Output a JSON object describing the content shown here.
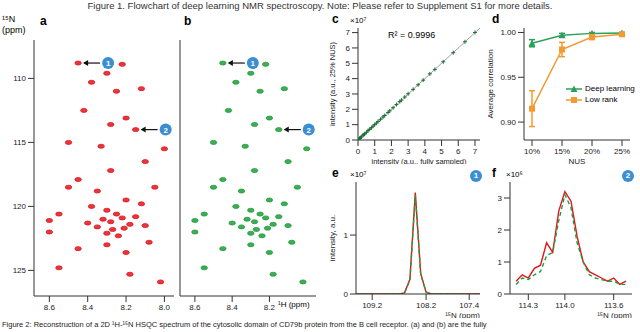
{
  "header": "Figure 1. Flowchart of deep learning NMR spectroscopy. Note: Please refer to Supplement S1 for more details.",
  "caption": "Figure 2: Reconstruction of a 2D ¹H-¹⁵N HSQC spectrum of the cytosolic domain of CD79b protein from the B cell receptor. (a) and (b) are the fully",
  "chart_data": [
    {
      "panel": "a",
      "type": "scatter",
      "y_label": "¹⁵N",
      "y_unit": "(ppm)",
      "color": "#e3141c",
      "x": [
        8.45,
        8.22,
        8.3,
        8.12,
        8.25,
        8.38,
        8.42,
        8.2,
        8.28,
        8.15,
        8.5,
        8.33,
        8.1,
        8.28,
        8.45,
        8.05,
        8.35,
        8.2,
        8.38,
        8.3,
        8.25,
        8.22,
        8.28,
        8.32,
        8.18,
        8.35,
        8.27,
        8.3,
        8.24,
        8.21,
        8.15,
        8.1,
        8.4,
        8.55,
        8.6,
        8.08,
        8.45,
        8.3,
        8.2,
        8.55,
        8.18,
        8.02,
        8.6,
        8.5,
        8.0,
        8.12
      ],
      "values": [
        108.8,
        108.9,
        109.6,
        110.8,
        111.0,
        110.3,
        112.5,
        113.1,
        113.6,
        114.0,
        115.0,
        115.3,
        116.5,
        117.2,
        117.9,
        118.5,
        118.8,
        119.5,
        120.0,
        120.3,
        120.6,
        120.9,
        121.2,
        121.0,
        121.4,
        121.6,
        121.8,
        122.1,
        122.3,
        121.7,
        120.8,
        121.5,
        121.3,
        120.6,
        121.1,
        122.8,
        123.3,
        123.0,
        123.6,
        124.8,
        125.3,
        125.9,
        122.0,
        118.5,
        115.5,
        119.8
      ],
      "xlim": [
        7.95,
        8.68
      ],
      "xticks": [
        8.6,
        8.4,
        8.2,
        {
          "value": 8,
          "label": "8.0"
        }
      ],
      "ylim": [
        107,
        127
      ],
      "yticks": [
        110,
        115,
        120,
        125
      ],
      "annotations": [
        {
          "text": "1",
          "x": 8.45,
          "y": 108.8
        },
        {
          "text": "2",
          "x": 8.15,
          "y": 114.0
        }
      ]
    },
    {
      "panel": "b",
      "type": "scatter",
      "x_label": "¹H (ppm)",
      "color": "#1f9e3a",
      "tick_labels": "x",
      "x": [
        8.45,
        8.22,
        8.3,
        8.12,
        8.25,
        8.38,
        8.42,
        8.2,
        8.28,
        8.15,
        8.5,
        8.33,
        8.1,
        8.28,
        8.45,
        8.05,
        8.35,
        8.2,
        8.38,
        8.3,
        8.25,
        8.22,
        8.28,
        8.32,
        8.18,
        8.35,
        8.27,
        8.3,
        8.24,
        8.21,
        8.15,
        8.1,
        8.4,
        8.55,
        8.6,
        8.08,
        8.45,
        8.3,
        8.2,
        8.55,
        8.18,
        8.02,
        8.6,
        8.5,
        8.0,
        8.12
      ],
      "values": [
        108.8,
        108.9,
        109.6,
        110.8,
        111.0,
        110.3,
        112.5,
        113.1,
        113.6,
        114.0,
        115.0,
        115.3,
        116.5,
        117.2,
        117.9,
        118.5,
        118.8,
        119.5,
        120.0,
        120.3,
        120.6,
        120.9,
        121.2,
        121.0,
        121.4,
        121.6,
        121.8,
        122.1,
        122.3,
        121.7,
        120.8,
        121.5,
        121.3,
        120.6,
        121.1,
        122.8,
        123.3,
        123.0,
        123.6,
        124.8,
        125.3,
        125.9,
        122.0,
        118.5,
        115.5,
        119.8
      ],
      "xlim": [
        7.95,
        8.68
      ],
      "xticks": [
        8.6,
        8.4,
        8.2
      ],
      "ylim": [
        107,
        127
      ],
      "yticks": [
        110,
        115,
        120,
        125
      ],
      "annotations": [
        {
          "text": "1",
          "x": 8.45,
          "y": 108.8
        },
        {
          "text": "2",
          "x": 8.15,
          "y": 114.0
        }
      ]
    },
    {
      "panel": "c",
      "type": "scatter",
      "x_label": "intensity (a.u., fully sampled)",
      "y_label": "intensity (a.u., 25% NUS)",
      "y_multiplier": "×10⁷",
      "annotation": "R² = 0.9996",
      "color": "#1d6e34",
      "x": [
        0.05,
        0.1,
        0.15,
        0.2,
        0.3,
        0.35,
        0.4,
        0.5,
        0.6,
        0.7,
        0.8,
        0.9,
        1.0,
        1.1,
        1.2,
        1.35,
        1.5,
        1.6,
        1.8,
        1.9,
        2.1,
        2.3,
        2.5,
        2.6,
        2.8,
        3.0,
        3.3,
        3.6,
        3.9,
        4.3,
        4.6,
        5.1,
        5.7,
        6.4,
        7.0
      ],
      "values": [
        0.05,
        0.11,
        0.15,
        0.2,
        0.31,
        0.35,
        0.4,
        0.5,
        0.61,
        0.7,
        0.8,
        0.9,
        1.0,
        1.1,
        1.21,
        1.35,
        1.5,
        1.6,
        1.79,
        1.9,
        2.1,
        2.31,
        2.5,
        2.6,
        2.8,
        3.01,
        3.3,
        3.6,
        3.9,
        4.31,
        4.6,
        5.1,
        5.69,
        6.4,
        7.01
      ],
      "xlim": [
        0,
        7.3
      ],
      "xticks": [
        0,
        1,
        2,
        3,
        4,
        5,
        6,
        7
      ],
      "ylim": [
        0,
        7.3
      ],
      "yticks": [
        0,
        1,
        2,
        3,
        4,
        5,
        6,
        7
      ]
    },
    {
      "panel": "d",
      "type": "line",
      "x_label": "NUS",
      "y_label": "Average correlation",
      "categories": [
        "10%",
        "15%",
        "20%",
        "25%"
      ],
      "series": [
        {
          "name": "Deep learning",
          "color": "#2ca05a",
          "marker": "triangle",
          "values": [
            0.988,
            0.997,
            0.999,
            0.9995
          ],
          "errors": [
            0.004,
            0.002,
            0.001,
            0.0005
          ]
        },
        {
          "name": "Low rank",
          "color": "#f39a30",
          "marker": "square",
          "values": [
            0.915,
            0.981,
            0.995,
            0.998
          ],
          "errors": [
            0.02,
            0.008,
            0.003,
            0.001
          ]
        }
      ],
      "ylim": [
        0.88,
        1.005
      ],
      "yticks": [
        {
          "value": 0.9,
          "label": "0.90"
        },
        0.95,
        {
          "value": 1,
          "label": "1.00"
        }
      ],
      "legend": "right"
    },
    {
      "panel": "e",
      "type": "line",
      "x_label": "¹⁵N (ppm)",
      "y_label": "intensity, a.u.",
      "y_multiplier": "×10⁷",
      "marker_text": "1",
      "x": [
        109.5,
        109.4,
        109.3,
        109.2,
        109.1,
        109.0,
        108.9,
        108.8,
        108.7,
        108.6,
        108.5,
        108.4,
        108.3,
        108.2,
        108.1,
        108.0,
        107.9,
        107.8,
        107.7,
        107.6,
        107.5,
        107.4,
        107.3,
        107.2
      ],
      "series": [
        {
          "color": "#e3141c",
          "line_style": "solid",
          "values": [
            0,
            0,
            0,
            0,
            0,
            0,
            0,
            0,
            0,
            0.02,
            0.25,
            1.72,
            0.35,
            0.03,
            0,
            0,
            0,
            0,
            0,
            0,
            0,
            0,
            0,
            0
          ]
        },
        {
          "color": "#1f9e3a",
          "line_style": "dashed",
          "values": [
            0,
            0,
            0,
            0,
            0,
            0,
            0,
            0,
            0,
            0.02,
            0.23,
            1.68,
            0.33,
            0.03,
            0,
            0,
            0,
            0,
            0,
            0,
            0,
            0,
            0,
            0
          ]
        }
      ],
      "xlim": [
        107.2,
        109.5
      ],
      "xticks": [
        109.2,
        108.2,
        107.4
      ],
      "ylim": [
        0,
        1.9
      ],
      "yticks": [
        0,
        1
      ]
    },
    {
      "panel": "f",
      "type": "line",
      "x_label": "¹⁵N (ppm)",
      "y_multiplier": "×10⁶",
      "marker_text": "2",
      "x": [
        114.4,
        114.35,
        114.3,
        114.25,
        114.2,
        114.15,
        114.1,
        114.05,
        114.0,
        113.95,
        113.9,
        113.85,
        113.8,
        113.75,
        113.7,
        113.65,
        113.6,
        113.55,
        113.5
      ],
      "series": [
        {
          "color": "#e3141c",
          "line_style": "solid",
          "values": [
            0.4,
            0.6,
            0.5,
            0.8,
            0.9,
            1.6,
            1.3,
            2.6,
            3.2,
            2.9,
            1.8,
            1.0,
            0.7,
            0.6,
            0.5,
            0.4,
            0.5,
            0.3,
            0.4
          ]
        },
        {
          "color": "#1f9e3a",
          "line_style": "dashed",
          "values": [
            0.3,
            0.5,
            0.45,
            0.6,
            0.7,
            1.2,
            1.3,
            2.3,
            3.1,
            2.7,
            1.6,
            1.0,
            0.6,
            0.5,
            0.45,
            0.4,
            0.4,
            0.3,
            0.3
          ]
        }
      ],
      "xlim": [
        113.45,
        114.45
      ],
      "xticks": [
        114.3,
        {
          "value": 114,
          "label": "114.0"
        },
        113.6
      ],
      "ylim": [
        0,
        3.5
      ],
      "yticks": [
        0,
        1,
        2,
        3
      ]
    }
  ]
}
